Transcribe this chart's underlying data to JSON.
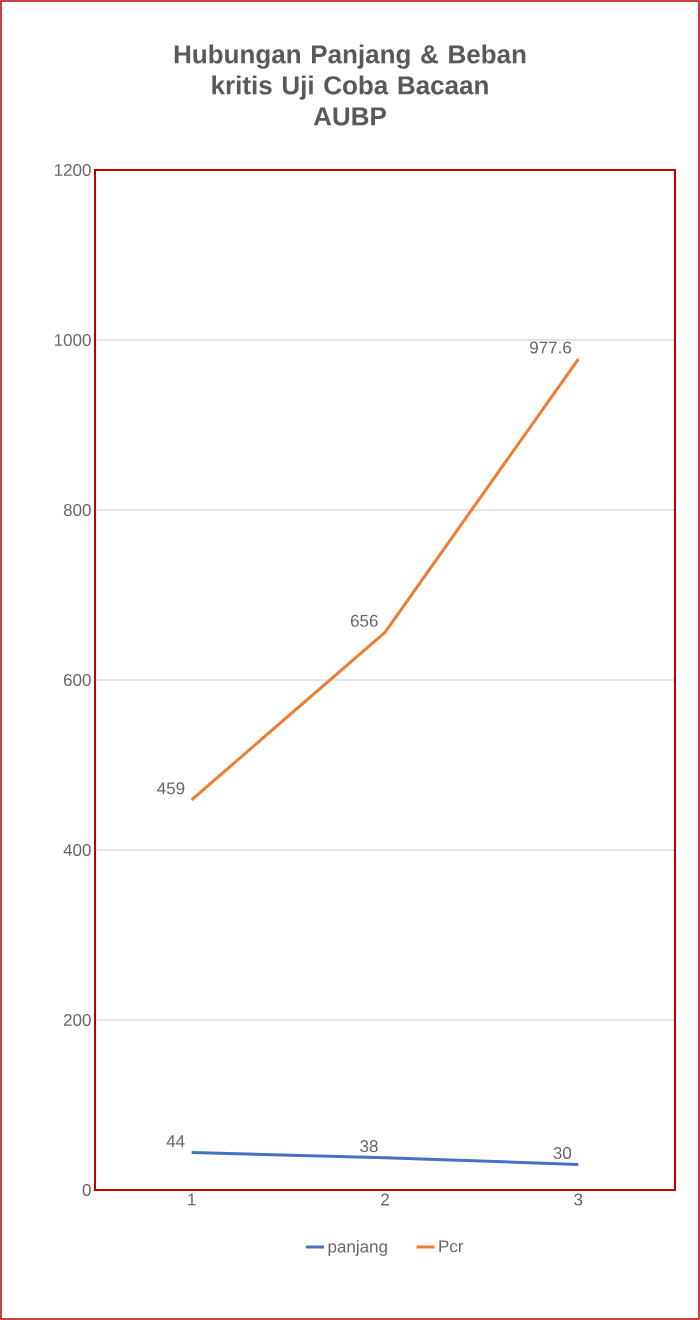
{
  "chart_data": {
    "type": "line",
    "title": "Hubungan Panjang & Beban kritis Uji Coba Bacaan",
    "subtitle": "AUBP",
    "categories": [
      "1",
      "2",
      "3"
    ],
    "series": [
      {
        "name": "panjang",
        "color": "#4472c4",
        "values": [
          44,
          38,
          30
        ]
      },
      {
        "name": "Pcr",
        "color": "#ed7d31",
        "values": [
          459,
          656,
          977.6
        ]
      }
    ],
    "ylim": [
      0,
      1200
    ],
    "yticks": [
      0,
      200,
      400,
      600,
      800,
      1000,
      1200
    ],
    "grid": "y",
    "legend": "bottom",
    "data_labels": true,
    "marker": "none",
    "line_style": "solid"
  }
}
